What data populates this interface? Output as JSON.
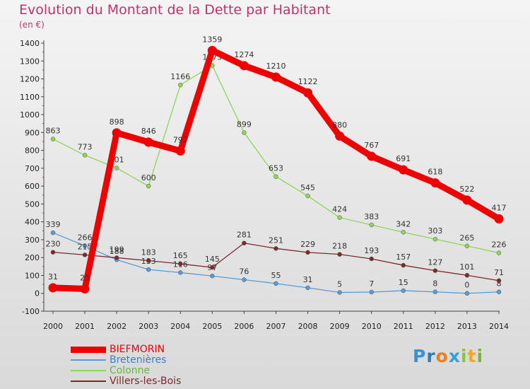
{
  "title": "Evolution du Montant de la Dette par Habitant",
  "unit_label": "(en €)",
  "logo": {
    "text": "Proxiti",
    "letter_colors": [
      "#3a8fd8",
      "#2e7dc0",
      "#f07f1a",
      "#2ea3dd",
      "#8bc34a",
      "#f5a623",
      "#7cb342"
    ]
  },
  "chart_data": {
    "type": "line",
    "title": "Evolution du Montant de la Dette par Habitant",
    "ylabel": "(en €)",
    "xlabel": "",
    "x": [
      "2000",
      "2001",
      "2002",
      "2003",
      "2004",
      "2005",
      "2006",
      "2007",
      "2008",
      "2009",
      "2010",
      "2011",
      "2012",
      "2013",
      "2014"
    ],
    "ylim": [
      -100,
      1400
    ],
    "yticks": [
      -100,
      0,
      100,
      200,
      300,
      400,
      500,
      600,
      700,
      800,
      900,
      1000,
      1100,
      1200,
      1300,
      1400
    ],
    "grid": false,
    "legend_position": "bottom-left",
    "series": [
      {
        "name": "Bretenières",
        "color": "#5b9bd5",
        "values": [
          339,
          266,
          188,
          133,
          116,
          97,
          76,
          55,
          31,
          5,
          7,
          15,
          8,
          0,
          8
        ],
        "labels": [
          "339",
          "266",
          "188",
          "133",
          "116",
          "97",
          "76",
          "55",
          "31",
          "5",
          "7",
          "15",
          "8",
          "0",
          "8"
        ]
      },
      {
        "name": "Colonne",
        "color": "#8ed45a",
        "values": [
          863,
          773,
          701,
          600,
          1166,
          1275,
          899,
          653,
          545,
          424,
          383,
          342,
          303,
          265,
          226
        ],
        "labels": [
          "863",
          "773",
          "701",
          "600",
          "1166",
          "1275",
          "899",
          "653",
          "545",
          "424",
          "383",
          "342",
          "303",
          "265",
          "226"
        ]
      },
      {
        "name": "Villers-les-Bois",
        "color": "#7b2a2a",
        "values": [
          230,
          215,
          199,
          183,
          165,
          145,
          281,
          251,
          229,
          218,
          193,
          157,
          127,
          101,
          71
        ],
        "labels": [
          "230",
          "215",
          "199",
          "183",
          "165",
          "145",
          "281",
          "251",
          "229",
          "218",
          "193",
          "157",
          "127",
          "101",
          "71"
        ]
      },
      {
        "name": "BIEFMORIN",
        "color": "#ee0000",
        "values": [
          31,
          25,
          898,
          846,
          797,
          1359,
          1274,
          1210,
          1122,
          880,
          767,
          691,
          618,
          522,
          417
        ],
        "labels": [
          "31",
          "25",
          "898",
          "846",
          "797",
          "1359",
          "1274",
          "1210",
          "1122",
          "880",
          "767",
          "691",
          "618",
          "522",
          "417"
        ]
      }
    ],
    "legend": [
      "BIEFMORIN",
      "Bretenières",
      "Colonne",
      "Villers-les-Bois"
    ]
  }
}
